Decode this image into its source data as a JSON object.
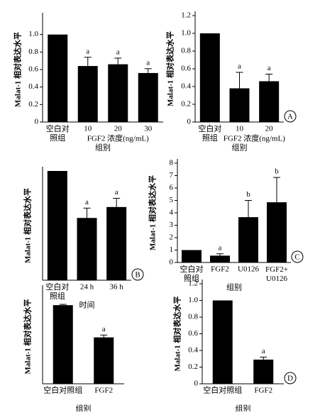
{
  "chart_data": [
    {
      "type": "bar",
      "ylabel": "Malat-1 相对表达水平",
      "categories": [
        "空白对\n照组",
        "10",
        "20",
        "30"
      ],
      "values": [
        1.0,
        0.64,
        0.66,
        0.56
      ],
      "errors": [
        0,
        0.1,
        0.07,
        0.05
      ],
      "annotations": [
        null,
        "a",
        "a",
        "a"
      ],
      "group_label": "FGF2 浓度(ng/mL)",
      "xlabel": "组别",
      "ylim": [
        0,
        1.2
      ],
      "yticks": [
        0,
        0.2,
        0.4,
        0.6,
        0.8,
        {
          "value": 1.0,
          "label": "1.0"
        }
      ],
      "color": "#000000"
    },
    {
      "type": "bar",
      "ylabel": "Malat-1 相对表达水平",
      "categories": [
        "空白对\n照组",
        "10",
        "20"
      ],
      "values": [
        1.0,
        0.38,
        0.46
      ],
      "errors": [
        0,
        0.18,
        0.08
      ],
      "annotations": [
        null,
        "a",
        "a"
      ],
      "group_label": "FGF2 浓度(ng/mL)",
      "xlabel": "组别",
      "panel_label": "A",
      "ylim": [
        0,
        1.2
      ],
      "yticks": [
        0,
        0.2,
        0.4,
        0.6,
        0.8,
        {
          "value": 1.0,
          "label": "1.0"
        },
        1.2
      ],
      "color": "#000000"
    },
    {
      "type": "bar",
      "ylabel": "Malat-1 相对表达水平",
      "categories": [
        "空白对\n照组",
        "24 h",
        "36 h"
      ],
      "values": [
        1.0,
        0.57,
        0.67
      ],
      "errors": [
        0,
        0.09,
        0.08
      ],
      "annotations": [
        null,
        "a",
        "a"
      ],
      "xlabel": "时间",
      "panel_label": "B",
      "ylim": [
        0,
        1.0
      ],
      "color": "#000000"
    },
    {
      "type": "bar",
      "ylabel": "Malat-1 相对表达水平",
      "categories": [
        "空白对\n照组",
        "FGF2",
        "U0126",
        "FGF2+\nU0126"
      ],
      "values": [
        1.0,
        0.55,
        3.65,
        4.85
      ],
      "errors": [
        0,
        0.15,
        1.35,
        2.0
      ],
      "annotations": [
        null,
        "a",
        "b",
        "b"
      ],
      "xlabel": "组别",
      "panel_label": "C",
      "ylim": [
        0,
        8
      ],
      "yticks": [
        0,
        1,
        2,
        3,
        4,
        5,
        6,
        7,
        8
      ],
      "color": "#000000"
    },
    {
      "type": "bar",
      "ylabel": "Malat-1 相对表达水平",
      "categories": [
        "空白对照组",
        "FGF2"
      ],
      "values": [
        1.0,
        0.59
      ],
      "errors": [
        0.01,
        0.03
      ],
      "annotations": [
        null,
        "a"
      ],
      "xlabel": "组别",
      "ylim": [
        0,
        1.2
      ],
      "color": "#000000"
    },
    {
      "type": "bar",
      "ylabel": "Malat-1 相对表达水平",
      "categories": [
        "空白对照组",
        "FGF2"
      ],
      "values": [
        1.0,
        0.29
      ],
      "errors": [
        0,
        0.03
      ],
      "annotations": [
        null,
        "a"
      ],
      "xlabel": "组别",
      "panel_label": "D",
      "ylim": [
        0,
        1.2
      ],
      "yticks": [
        0,
        0.2,
        0.4,
        0.6,
        0.8,
        {
          "value": 1.0,
          "label": "1.0"
        },
        1.2
      ],
      "color": "#000000"
    }
  ]
}
